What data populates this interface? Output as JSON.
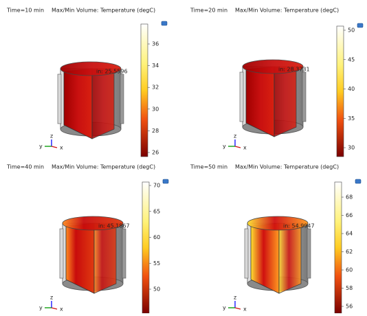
{
  "panels": [
    {
      "time": "Time=10 min",
      "title": "Max/Min Volume: Temperature (degC)",
      "min_label": "in: 25.5596",
      "ticks": [
        "26",
        "28",
        "30",
        "32",
        "34",
        "36"
      ],
      "axes": [
        "y",
        "z",
        "x"
      ]
    },
    {
      "time": "Time=20 min",
      "title": "Max/Min Volume: Temperature (degC)",
      "min_label": "in: 28.3731",
      "ticks": [
        "30",
        "35",
        "40",
        "45",
        "50"
      ],
      "axes": [
        "y",
        "z",
        "x"
      ]
    },
    {
      "time": "Time=40 min",
      "title": "Max/Min Volume: Temperature (degC)",
      "min_label": "in: 45.1867",
      "ticks": [
        "50",
        "55",
        "60",
        "65",
        "70"
      ],
      "axes": [
        "y",
        "z",
        "x"
      ]
    },
    {
      "time": "Time=50 min",
      "title": "Max/Min Volume: Temperature (degC)",
      "min_label": "in: 54.9947",
      "ticks": [
        "56",
        "58",
        "60",
        "62",
        "64",
        "66",
        "68"
      ],
      "axes": [
        "y",
        "z",
        "x"
      ]
    }
  ]
}
